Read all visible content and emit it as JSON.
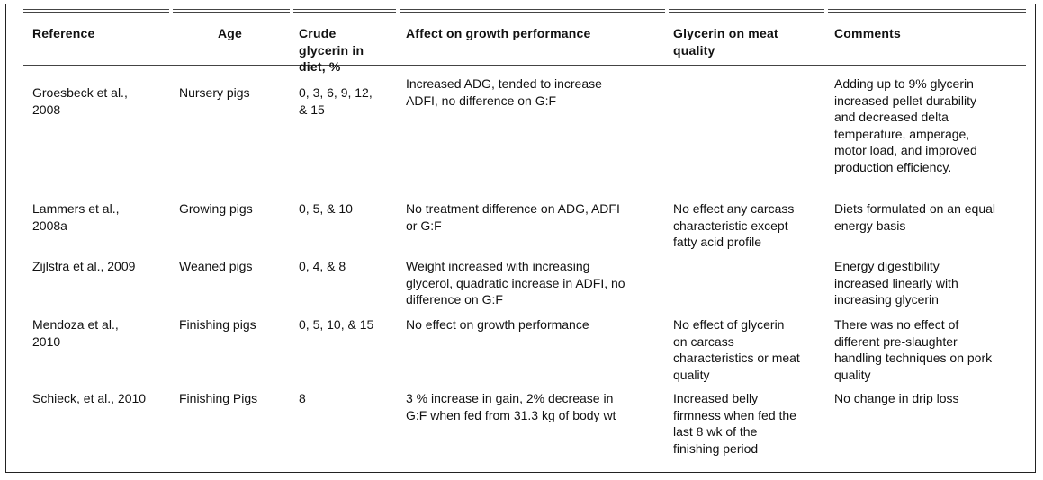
{
  "table": {
    "headers": [
      "Reference",
      "Age",
      "Crude\nglycerin in\ndiet, %",
      "Affect on growth performance",
      "Glycerin on meat\nquality",
      "Comments"
    ],
    "rows": [
      {
        "reference": "Groesbeck et al.,\n2008",
        "age": "Nursery pigs",
        "glycerin": "0, 3, 6, 9, 12,\n& 15",
        "growth": "Increased ADG, tended to increase\nADFI, no difference on G:F",
        "meat": "",
        "comments": "Adding up to 9% glycerin\nincreased pellet durability\nand decreased delta\ntemperature, amperage,\nmotor load, and improved\nproduction efficiency."
      },
      {
        "reference": "Lammers et al.,\n2008a",
        "age": "Growing pigs",
        "glycerin": "0, 5, & 10",
        "growth": "No treatment difference on ADG, ADFI\nor G:F",
        "meat": "No effect any carcass\ncharacteristic except\nfatty acid profile",
        "comments": "Diets formulated on an equal\nenergy basis"
      },
      {
        "reference": "Zijlstra et al., 2009",
        "age": "Weaned pigs",
        "glycerin": "0, 4, & 8",
        "growth": "Weight increased with increasing\nglycerol, quadratic increase in ADFI, no\ndifference on G:F",
        "meat": "",
        "comments": "Energy digestibility\nincreased linearly with\nincreasing glycerin"
      },
      {
        "reference": "Mendoza et al.,\n2010",
        "age": "Finishing pigs",
        "glycerin": "0, 5, 10, & 15",
        "growth": "No effect on growth performance",
        "meat": "No effect of glycerin\non carcass\ncharacteristics or meat\nquality",
        "comments": "There was no effect of\ndifferent pre-slaughter\nhandling techniques on pork\nquality"
      },
      {
        "reference": "Schieck, et al., 2010",
        "age": "Finishing Pigs",
        "glycerin": "8",
        "growth": "3 % increase in gain, 2% decrease in\nG:F when fed from 31.3 kg of body wt",
        "meat": "Increased belly\nfirmness when fed the\nlast 8 wk of the\nfinishing period",
        "comments": "No change in drip loss"
      }
    ]
  }
}
